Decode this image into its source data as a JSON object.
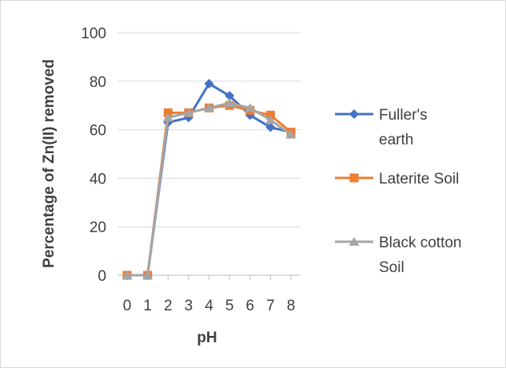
{
  "chart_data": {
    "type": "line",
    "title": "",
    "xlabel": "pH",
    "ylabel": "Percentage of Zn(II) removed",
    "x": [
      0,
      1,
      2,
      3,
      4,
      5,
      6,
      7,
      8
    ],
    "ylim": [
      0,
      100
    ],
    "yticks": [
      0,
      20,
      40,
      60,
      80,
      100
    ],
    "grid": "horizontal",
    "legend_position": "right",
    "series": [
      {
        "name": "Fuller's earth",
        "marker": "diamond",
        "color": "#4472C4",
        "values": [
          0,
          0,
          63,
          65,
          79,
          74,
          66,
          61,
          59
        ]
      },
      {
        "name": "Laterite Soil",
        "marker": "square",
        "color": "#ED7D31",
        "values": [
          0,
          0,
          67,
          67,
          69,
          70,
          68,
          66,
          59
        ]
      },
      {
        "name": "Black cotton Soil",
        "marker": "triangle",
        "color": "#A5A5A5",
        "values": [
          0,
          0,
          65,
          67,
          69,
          71,
          69,
          64,
          58
        ]
      }
    ]
  }
}
